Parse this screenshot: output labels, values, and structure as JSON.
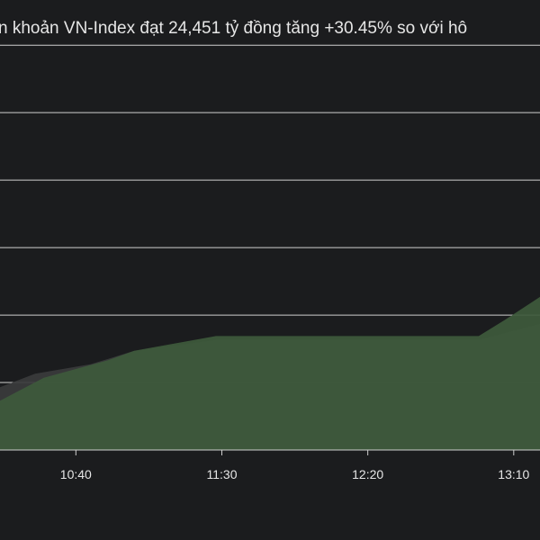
{
  "chart_data": {
    "type": "area",
    "title": "n khoản VN-Index đạt 24,451 tỷ đồng tăng +30.45% so với hô",
    "xlim": [
      614,
      799
    ],
    "xticks": [
      {
        "value": 640,
        "label": "10:40"
      },
      {
        "value": 690,
        "label": "11:30"
      },
      {
        "value": 740,
        "label": "12:20"
      },
      {
        "value": 790,
        "label": "13:10"
      }
    ],
    "ylim": [
      0,
      6.67
    ],
    "yticks": [
      1,
      2,
      3,
      4,
      5,
      6
    ],
    "grid": true,
    "series": [
      {
        "color": "#3a3b3c",
        "x": [
          614,
          626,
          645,
          660,
          688,
          778,
          799
        ],
        "values": [
          0.93,
          1.13,
          1.27,
          1.47,
          1.63,
          1.63,
          1.87
        ]
      },
      {
        "color": "#3e5a3c",
        "x": [
          614,
          629,
          651,
          660,
          688,
          778,
          787,
          799
        ],
        "values": [
          0.73,
          1.07,
          1.33,
          1.47,
          1.69,
          1.69,
          1.93,
          2.27
        ]
      }
    ]
  }
}
